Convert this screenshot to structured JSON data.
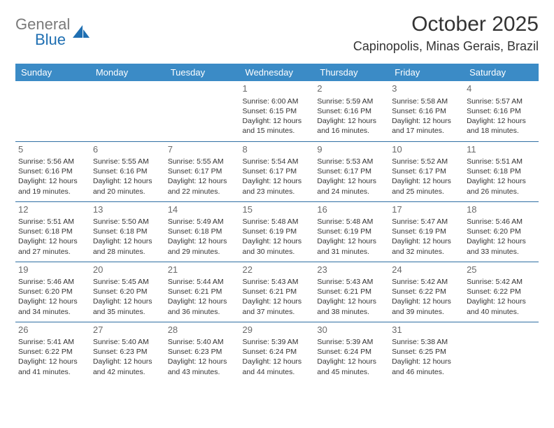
{
  "brand": {
    "word1": "General",
    "word2": "Blue",
    "logo_color": "#1f6fb2",
    "gray": "#7a7a7a"
  },
  "title": "October 2025",
  "location": "Capinopolis, Minas Gerais, Brazil",
  "header_bg": "#3b8bc6",
  "border_color": "#2f6fa3",
  "weekdays": [
    "Sunday",
    "Monday",
    "Tuesday",
    "Wednesday",
    "Thursday",
    "Friday",
    "Saturday"
  ],
  "cells": [
    {
      "day": "",
      "sunrise": "",
      "sunset": "",
      "daylight": ""
    },
    {
      "day": "",
      "sunrise": "",
      "sunset": "",
      "daylight": ""
    },
    {
      "day": "",
      "sunrise": "",
      "sunset": "",
      "daylight": ""
    },
    {
      "day": "1",
      "sunrise": "Sunrise: 6:00 AM",
      "sunset": "Sunset: 6:15 PM",
      "daylight": "Daylight: 12 hours and 15 minutes."
    },
    {
      "day": "2",
      "sunrise": "Sunrise: 5:59 AM",
      "sunset": "Sunset: 6:16 PM",
      "daylight": "Daylight: 12 hours and 16 minutes."
    },
    {
      "day": "3",
      "sunrise": "Sunrise: 5:58 AM",
      "sunset": "Sunset: 6:16 PM",
      "daylight": "Daylight: 12 hours and 17 minutes."
    },
    {
      "day": "4",
      "sunrise": "Sunrise: 5:57 AM",
      "sunset": "Sunset: 6:16 PM",
      "daylight": "Daylight: 12 hours and 18 minutes."
    },
    {
      "day": "5",
      "sunrise": "Sunrise: 5:56 AM",
      "sunset": "Sunset: 6:16 PM",
      "daylight": "Daylight: 12 hours and 19 minutes."
    },
    {
      "day": "6",
      "sunrise": "Sunrise: 5:55 AM",
      "sunset": "Sunset: 6:16 PM",
      "daylight": "Daylight: 12 hours and 20 minutes."
    },
    {
      "day": "7",
      "sunrise": "Sunrise: 5:55 AM",
      "sunset": "Sunset: 6:17 PM",
      "daylight": "Daylight: 12 hours and 22 minutes."
    },
    {
      "day": "8",
      "sunrise": "Sunrise: 5:54 AM",
      "sunset": "Sunset: 6:17 PM",
      "daylight": "Daylight: 12 hours and 23 minutes."
    },
    {
      "day": "9",
      "sunrise": "Sunrise: 5:53 AM",
      "sunset": "Sunset: 6:17 PM",
      "daylight": "Daylight: 12 hours and 24 minutes."
    },
    {
      "day": "10",
      "sunrise": "Sunrise: 5:52 AM",
      "sunset": "Sunset: 6:17 PM",
      "daylight": "Daylight: 12 hours and 25 minutes."
    },
    {
      "day": "11",
      "sunrise": "Sunrise: 5:51 AM",
      "sunset": "Sunset: 6:18 PM",
      "daylight": "Daylight: 12 hours and 26 minutes."
    },
    {
      "day": "12",
      "sunrise": "Sunrise: 5:51 AM",
      "sunset": "Sunset: 6:18 PM",
      "daylight": "Daylight: 12 hours and 27 minutes."
    },
    {
      "day": "13",
      "sunrise": "Sunrise: 5:50 AM",
      "sunset": "Sunset: 6:18 PM",
      "daylight": "Daylight: 12 hours and 28 minutes."
    },
    {
      "day": "14",
      "sunrise": "Sunrise: 5:49 AM",
      "sunset": "Sunset: 6:18 PM",
      "daylight": "Daylight: 12 hours and 29 minutes."
    },
    {
      "day": "15",
      "sunrise": "Sunrise: 5:48 AM",
      "sunset": "Sunset: 6:19 PM",
      "daylight": "Daylight: 12 hours and 30 minutes."
    },
    {
      "day": "16",
      "sunrise": "Sunrise: 5:48 AM",
      "sunset": "Sunset: 6:19 PM",
      "daylight": "Daylight: 12 hours and 31 minutes."
    },
    {
      "day": "17",
      "sunrise": "Sunrise: 5:47 AM",
      "sunset": "Sunset: 6:19 PM",
      "daylight": "Daylight: 12 hours and 32 minutes."
    },
    {
      "day": "18",
      "sunrise": "Sunrise: 5:46 AM",
      "sunset": "Sunset: 6:20 PM",
      "daylight": "Daylight: 12 hours and 33 minutes."
    },
    {
      "day": "19",
      "sunrise": "Sunrise: 5:46 AM",
      "sunset": "Sunset: 6:20 PM",
      "daylight": "Daylight: 12 hours and 34 minutes."
    },
    {
      "day": "20",
      "sunrise": "Sunrise: 5:45 AM",
      "sunset": "Sunset: 6:20 PM",
      "daylight": "Daylight: 12 hours and 35 minutes."
    },
    {
      "day": "21",
      "sunrise": "Sunrise: 5:44 AM",
      "sunset": "Sunset: 6:21 PM",
      "daylight": "Daylight: 12 hours and 36 minutes."
    },
    {
      "day": "22",
      "sunrise": "Sunrise: 5:43 AM",
      "sunset": "Sunset: 6:21 PM",
      "daylight": "Daylight: 12 hours and 37 minutes."
    },
    {
      "day": "23",
      "sunrise": "Sunrise: 5:43 AM",
      "sunset": "Sunset: 6:21 PM",
      "daylight": "Daylight: 12 hours and 38 minutes."
    },
    {
      "day": "24",
      "sunrise": "Sunrise: 5:42 AM",
      "sunset": "Sunset: 6:22 PM",
      "daylight": "Daylight: 12 hours and 39 minutes."
    },
    {
      "day": "25",
      "sunrise": "Sunrise: 5:42 AM",
      "sunset": "Sunset: 6:22 PM",
      "daylight": "Daylight: 12 hours and 40 minutes."
    },
    {
      "day": "26",
      "sunrise": "Sunrise: 5:41 AM",
      "sunset": "Sunset: 6:22 PM",
      "daylight": "Daylight: 12 hours and 41 minutes."
    },
    {
      "day": "27",
      "sunrise": "Sunrise: 5:40 AM",
      "sunset": "Sunset: 6:23 PM",
      "daylight": "Daylight: 12 hours and 42 minutes."
    },
    {
      "day": "28",
      "sunrise": "Sunrise: 5:40 AM",
      "sunset": "Sunset: 6:23 PM",
      "daylight": "Daylight: 12 hours and 43 minutes."
    },
    {
      "day": "29",
      "sunrise": "Sunrise: 5:39 AM",
      "sunset": "Sunset: 6:24 PM",
      "daylight": "Daylight: 12 hours and 44 minutes."
    },
    {
      "day": "30",
      "sunrise": "Sunrise: 5:39 AM",
      "sunset": "Sunset: 6:24 PM",
      "daylight": "Daylight: 12 hours and 45 minutes."
    },
    {
      "day": "31",
      "sunrise": "Sunrise: 5:38 AM",
      "sunset": "Sunset: 6:25 PM",
      "daylight": "Daylight: 12 hours and 46 minutes."
    },
    {
      "day": "",
      "sunrise": "",
      "sunset": "",
      "daylight": ""
    }
  ]
}
